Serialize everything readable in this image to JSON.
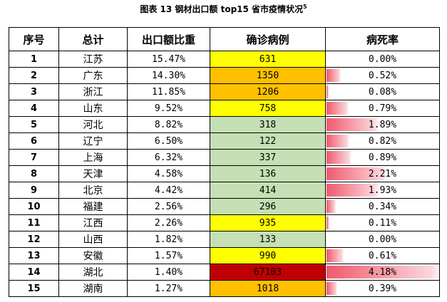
{
  "caption": {
    "text": "图表 13   钢材出口额 top15 省市疫情状况",
    "footnote": "5"
  },
  "table": {
    "headers": [
      "序号",
      "总计",
      "出口额比重",
      "确诊病例",
      "病死率"
    ],
    "rows": [
      {
        "idx": "1",
        "name": "江苏",
        "share": "15.47%",
        "cases": "631",
        "rate": "0.00%",
        "rate_value": 0.0,
        "case_color": "#ffff00"
      },
      {
        "idx": "2",
        "name": "广东",
        "share": "14.30%",
        "cases": "1350",
        "rate": "0.52%",
        "rate_value": 0.52,
        "case_color": "#ffc000"
      },
      {
        "idx": "3",
        "name": "浙江",
        "share": "11.85%",
        "cases": "1206",
        "rate": "0.08%",
        "rate_value": 0.08,
        "case_color": "#ffc000"
      },
      {
        "idx": "4",
        "name": "山东",
        "share": "9.52%",
        "cases": "758",
        "rate": "0.79%",
        "rate_value": 0.79,
        "case_color": "#ffff00"
      },
      {
        "idx": "5",
        "name": "河北",
        "share": "8.82%",
        "cases": "318",
        "rate": "1.89%",
        "rate_value": 1.89,
        "case_color": "#c5e0b4"
      },
      {
        "idx": "6",
        "name": "辽宁",
        "share": "6.50%",
        "cases": "122",
        "rate": "0.82%",
        "rate_value": 0.82,
        "case_color": "#c5e0b4"
      },
      {
        "idx": "7",
        "name": "上海",
        "share": "6.32%",
        "cases": "337",
        "rate": "0.89%",
        "rate_value": 0.89,
        "case_color": "#c5e0b4"
      },
      {
        "idx": "8",
        "name": "天津",
        "share": "4.58%",
        "cases": "136",
        "rate": "2.21%",
        "rate_value": 2.21,
        "case_color": "#c5e0b4"
      },
      {
        "idx": "9",
        "name": "北京",
        "share": "4.42%",
        "cases": "414",
        "rate": "1.93%",
        "rate_value": 1.93,
        "case_color": "#c5e0b4"
      },
      {
        "idx": "10",
        "name": "福建",
        "share": "2.56%",
        "cases": "296",
        "rate": "0.34%",
        "rate_value": 0.34,
        "case_color": "#c5e0b4"
      },
      {
        "idx": "11",
        "name": "江西",
        "share": "2.26%",
        "cases": "935",
        "rate": "0.11%",
        "rate_value": 0.11,
        "case_color": "#ffff00"
      },
      {
        "idx": "12",
        "name": "山西",
        "share": "1.82%",
        "cases": "133",
        "rate": "0.00%",
        "rate_value": 0.0,
        "case_color": "#c5e0b4"
      },
      {
        "idx": "13",
        "name": "安徽",
        "share": "1.57%",
        "cases": "990",
        "rate": "0.61%",
        "rate_value": 0.61,
        "case_color": "#ffff00"
      },
      {
        "idx": "14",
        "name": "湖北",
        "share": "1.40%",
        "cases": "67103",
        "rate": "4.18%",
        "rate_value": 4.18,
        "case_color": "#c00000"
      },
      {
        "idx": "15",
        "name": "湖南",
        "share": "1.27%",
        "cases": "1018",
        "rate": "0.39%",
        "rate_value": 0.39,
        "case_color": "#ffc000"
      }
    ]
  }
}
